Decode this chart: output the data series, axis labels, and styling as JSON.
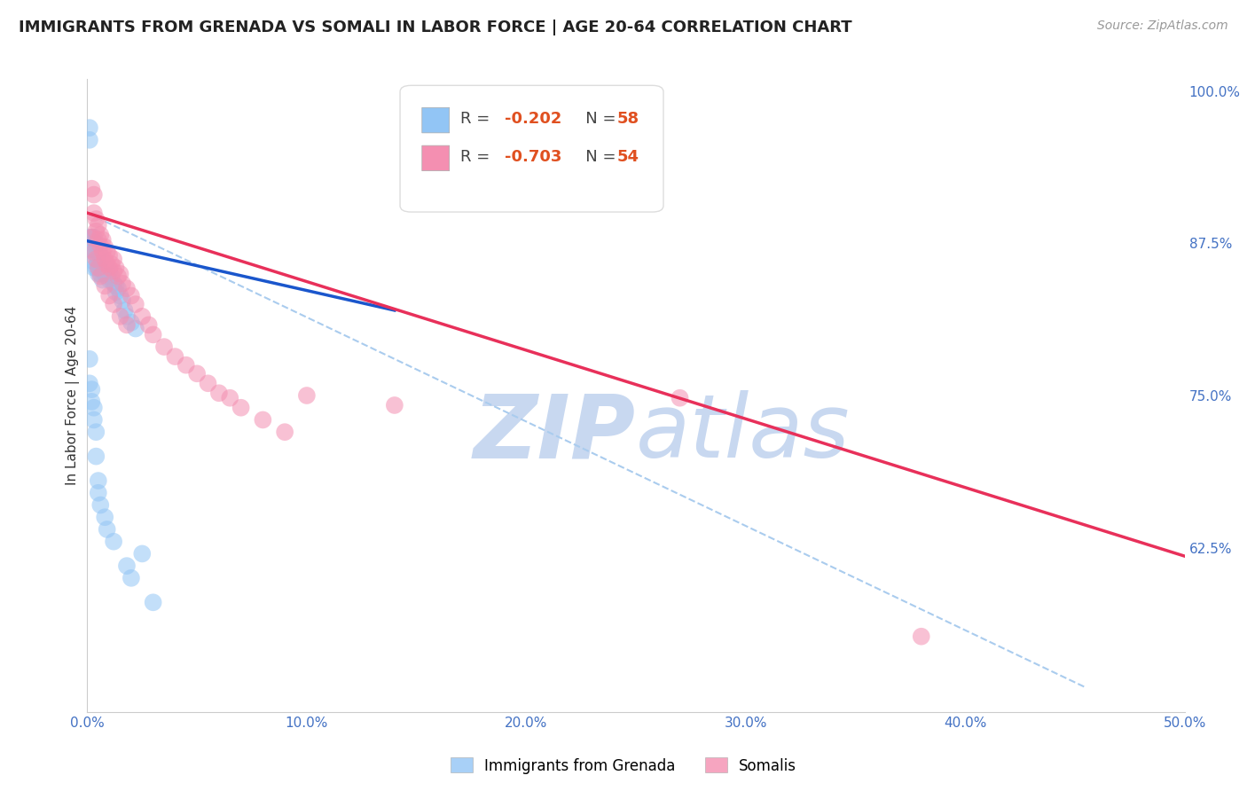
{
  "title": "IMMIGRANTS FROM GRENADA VS SOMALI IN LABOR FORCE | AGE 20-64 CORRELATION CHART",
  "source": "Source: ZipAtlas.com",
  "ylabel": "In Labor Force | Age 20-64",
  "xmin": 0.0,
  "xmax": 0.5,
  "ymin": 0.49,
  "ymax": 1.01,
  "right_yticks": [
    1.0,
    0.875,
    0.75,
    0.625
  ],
  "right_yticklabels": [
    "100.0%",
    "87.5%",
    "75.0%",
    "62.5%"
  ],
  "bottom_xticks": [
    0.0,
    0.1,
    0.2,
    0.3,
    0.4,
    0.5
  ],
  "bottom_xticklabels": [
    "0.0%",
    "10.0%",
    "20.0%",
    "30.0%",
    "40.0%",
    "50.0%"
  ],
  "grenada_color": "#92C5F5",
  "somali_color": "#F48FB1",
  "grenada_line_color": "#1A56CC",
  "somali_line_color": "#E8305A",
  "dashed_line_color": "#AACCEE",
  "background_color": "#FFFFFF",
  "grid_color": "#CCCCCC",
  "watermark_zip": "ZIP",
  "watermark_atlas": "atlas",
  "watermark_color": "#C8D8F0",
  "legend_R_grenada": "R = -0.202",
  "legend_N_grenada": "N = 58",
  "legend_R_somali": "R = -0.703",
  "legend_N_somali": "N = 54",
  "legend_label_grenada": "Immigrants from Grenada",
  "legend_label_somali": "Somalis",
  "title_color": "#222222",
  "axis_label_color": "#333333",
  "right_tick_color": "#4472C4",
  "bottom_tick_color": "#4472C4",
  "grenada_scatter_x": [
    0.001,
    0.001,
    0.001,
    0.002,
    0.002,
    0.002,
    0.003,
    0.003,
    0.003,
    0.003,
    0.004,
    0.004,
    0.004,
    0.005,
    0.005,
    0.005,
    0.005,
    0.006,
    0.006,
    0.006,
    0.007,
    0.007,
    0.007,
    0.008,
    0.008,
    0.009,
    0.009,
    0.01,
    0.01,
    0.011,
    0.012,
    0.013,
    0.013,
    0.014,
    0.015,
    0.016,
    0.017,
    0.018,
    0.02,
    0.022,
    0.001,
    0.001,
    0.002,
    0.002,
    0.003,
    0.003,
    0.004,
    0.004,
    0.005,
    0.005,
    0.006,
    0.008,
    0.009,
    0.012,
    0.018,
    0.02,
    0.025,
    0.03
  ],
  "grenada_scatter_y": [
    0.97,
    0.96,
    0.88,
    0.88,
    0.875,
    0.87,
    0.88,
    0.87,
    0.86,
    0.855,
    0.875,
    0.865,
    0.855,
    0.87,
    0.86,
    0.855,
    0.85,
    0.865,
    0.858,
    0.85,
    0.86,
    0.852,
    0.845,
    0.858,
    0.85,
    0.855,
    0.848,
    0.852,
    0.845,
    0.848,
    0.842,
    0.84,
    0.835,
    0.838,
    0.832,
    0.828,
    0.82,
    0.815,
    0.81,
    0.805,
    0.78,
    0.76,
    0.755,
    0.745,
    0.74,
    0.73,
    0.72,
    0.7,
    0.68,
    0.67,
    0.66,
    0.65,
    0.64,
    0.63,
    0.61,
    0.6,
    0.62,
    0.58
  ],
  "somali_scatter_x": [
    0.002,
    0.003,
    0.003,
    0.004,
    0.004,
    0.005,
    0.005,
    0.006,
    0.006,
    0.007,
    0.007,
    0.008,
    0.008,
    0.009,
    0.009,
    0.01,
    0.01,
    0.011,
    0.012,
    0.012,
    0.013,
    0.014,
    0.015,
    0.016,
    0.018,
    0.02,
    0.022,
    0.025,
    0.028,
    0.03,
    0.035,
    0.04,
    0.045,
    0.05,
    0.055,
    0.06,
    0.065,
    0.07,
    0.08,
    0.09,
    0.002,
    0.003,
    0.004,
    0.005,
    0.006,
    0.008,
    0.01,
    0.012,
    0.015,
    0.018,
    0.1,
    0.14,
    0.38,
    0.27
  ],
  "somali_scatter_y": [
    0.92,
    0.915,
    0.9,
    0.895,
    0.885,
    0.89,
    0.878,
    0.882,
    0.873,
    0.878,
    0.868,
    0.872,
    0.862,
    0.868,
    0.858,
    0.865,
    0.855,
    0.858,
    0.862,
    0.852,
    0.855,
    0.848,
    0.85,
    0.842,
    0.838,
    0.832,
    0.825,
    0.815,
    0.808,
    0.8,
    0.79,
    0.782,
    0.775,
    0.768,
    0.76,
    0.752,
    0.748,
    0.74,
    0.73,
    0.72,
    0.88,
    0.868,
    0.862,
    0.855,
    0.848,
    0.84,
    0.832,
    0.825,
    0.815,
    0.808,
    0.75,
    0.742,
    0.552,
    0.748
  ],
  "grenada_trend_x": [
    0.0,
    0.14
  ],
  "grenada_trend_y": [
    0.877,
    0.82
  ],
  "somali_trend_x": [
    0.0,
    0.5
  ],
  "somali_trend_y": [
    0.9,
    0.618
  ],
  "dashed_trend_x": [
    0.0,
    0.455
  ],
  "dashed_trend_y": [
    0.9,
    0.51
  ]
}
